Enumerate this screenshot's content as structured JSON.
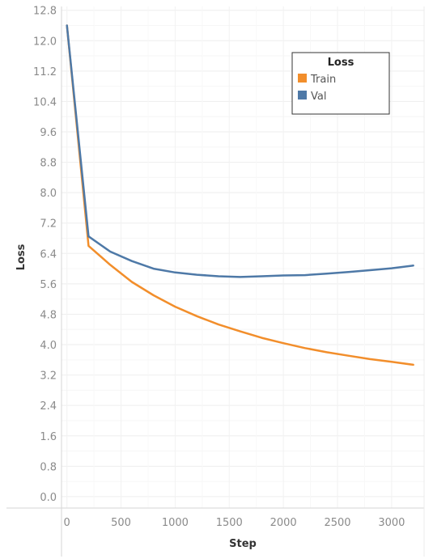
{
  "chart_data": {
    "type": "line",
    "title": "",
    "xlabel": "Step",
    "ylabel": "Loss",
    "xlim": [
      -50,
      3300
    ],
    "ylim": [
      -0.3,
      12.9
    ],
    "x_ticks": [
      0,
      500,
      1000,
      1500,
      2000,
      2500,
      3000
    ],
    "x_tick_labels": [
      "0",
      "500",
      "1000",
      "1500",
      "2000",
      "2500",
      "3000"
    ],
    "y_ticks": [
      0.0,
      0.8,
      1.6,
      2.4,
      3.2,
      4.0,
      4.8,
      5.6,
      6.4,
      7.2,
      8.0,
      8.8,
      9.6,
      10.4,
      11.2,
      12.0,
      12.8
    ],
    "y_tick_labels": [
      "0.0",
      "0.8",
      "1.6",
      "2.4",
      "3.2",
      "4.0",
      "4.8",
      "5.6",
      "6.4",
      "7.2",
      "8.0",
      "8.8",
      "9.6",
      "10.4",
      "11.2",
      "12.0",
      "12.8"
    ],
    "grid": true,
    "legend": {
      "title": "Loss",
      "position": "top-right"
    },
    "series": [
      {
        "name": "Train",
        "color": "#F28E2B",
        "x": [
          0,
          200,
          400,
          600,
          800,
          1000,
          1200,
          1400,
          1600,
          1800,
          2000,
          2200,
          2400,
          2600,
          2800,
          3000,
          3200
        ],
        "y": [
          12.4,
          6.6,
          6.1,
          5.65,
          5.3,
          5.0,
          4.75,
          4.53,
          4.35,
          4.18,
          4.04,
          3.91,
          3.8,
          3.71,
          3.62,
          3.55,
          3.47
        ]
      },
      {
        "name": "Val",
        "color": "#4E79A7",
        "x": [
          0,
          200,
          400,
          600,
          800,
          1000,
          1200,
          1400,
          1600,
          1800,
          2000,
          2200,
          2400,
          2600,
          2800,
          3000,
          3200
        ],
        "y": [
          12.4,
          6.85,
          6.45,
          6.2,
          6.0,
          5.9,
          5.84,
          5.8,
          5.78,
          5.8,
          5.82,
          5.83,
          5.87,
          5.91,
          5.96,
          6.01,
          6.08
        ]
      }
    ]
  }
}
